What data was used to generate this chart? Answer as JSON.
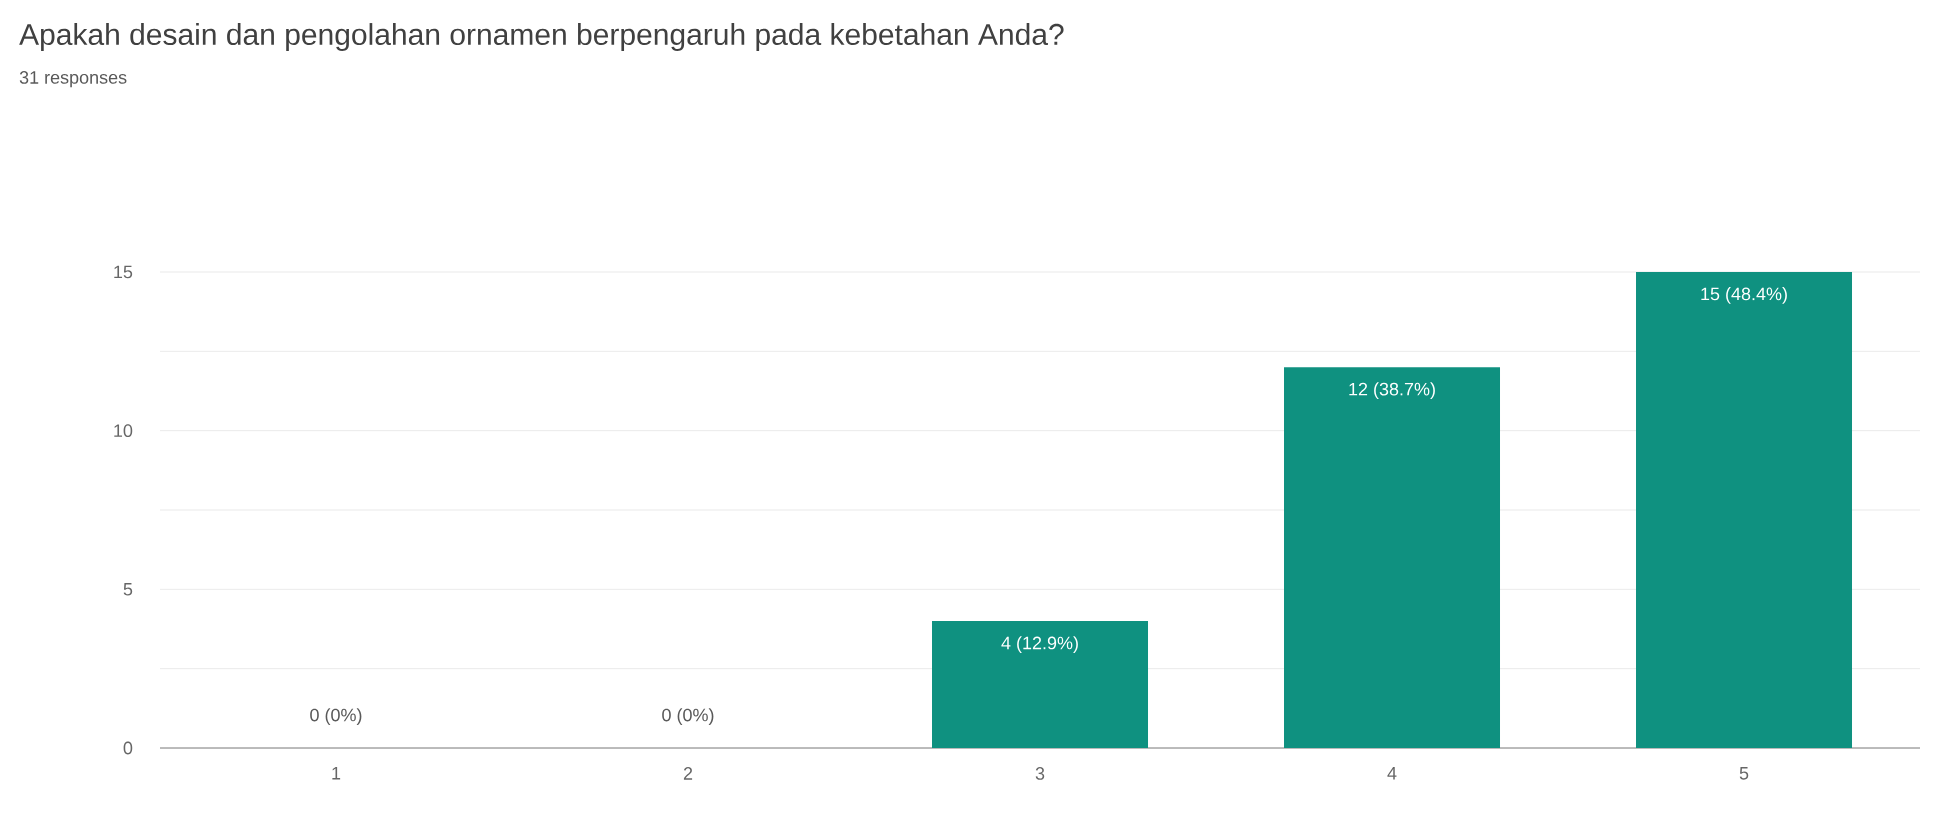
{
  "chart_data": {
    "type": "bar",
    "title": "Apakah desain dan pengolahan ornamen berpengaruh pada kebetahan Anda?",
    "subtitle": "31 responses",
    "categories": [
      "1",
      "2",
      "3",
      "4",
      "5"
    ],
    "values": [
      0,
      0,
      4,
      12,
      15
    ],
    "value_labels": [
      "0 (0%)",
      "0 (0%)",
      "4 (12.9%)",
      "12 (38.7%)",
      "15 (48.4%)"
    ],
    "color": "#0f9180",
    "ylim": [
      0,
      15
    ],
    "yticks": [
      0,
      {
        "value": 2.5,
        "label": null
      },
      5,
      {
        "value": 7.5,
        "label": null
      },
      10,
      {
        "value": 12.5,
        "label": null
      },
      15
    ],
    "grid": "y"
  }
}
